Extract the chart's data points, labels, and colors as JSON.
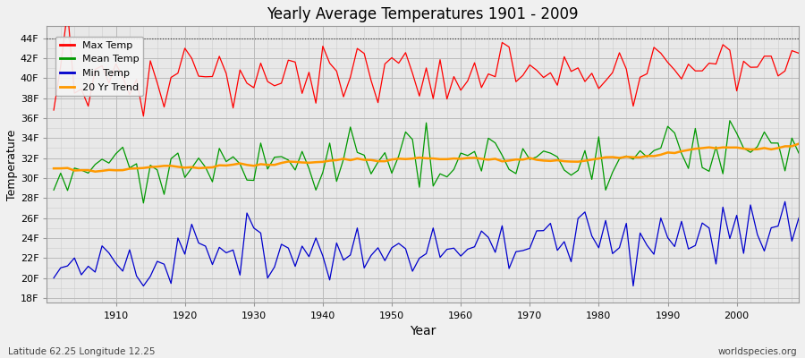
{
  "title": "Yearly Average Temperatures 1901 - 2009",
  "xlabel": "Year",
  "ylabel": "Temperature",
  "lat_lon_label": "Latitude 62.25 Longitude 12.25",
  "source_label": "worldspecies.org",
  "year_start": 1901,
  "year_end": 2009,
  "yticks": [
    "18F",
    "20F",
    "22F",
    "24F",
    "26F",
    "28F",
    "30F",
    "32F",
    "34F",
    "36F",
    "38F",
    "40F",
    "42F",
    "44F"
  ],
  "ytick_vals": [
    18,
    20,
    22,
    24,
    26,
    28,
    30,
    32,
    34,
    36,
    38,
    40,
    42,
    44
  ],
  "ylim": [
    17.5,
    45.2
  ],
  "xlim_start": 1900,
  "xlim_end": 2009,
  "background_color": "#f0f0f0",
  "plot_bg_color": "#e8e8e8",
  "max_color": "#ff0000",
  "mean_color": "#009900",
  "min_color": "#0000cc",
  "trend_color": "#ff9900",
  "grid_color": "#d0d0d0",
  "dotted_line_val": 44,
  "figsize": [
    9.0,
    4.0
  ],
  "dpi": 100
}
